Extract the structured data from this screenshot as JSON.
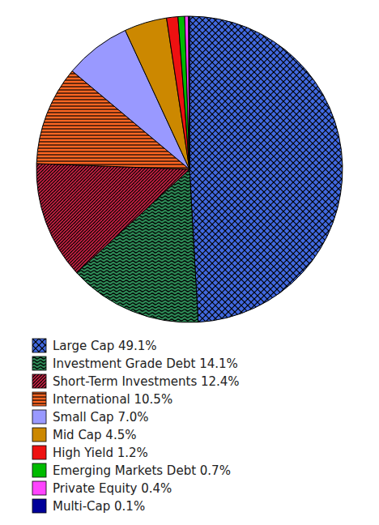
{
  "chart_data": {
    "type": "pie",
    "categories": [
      "Large Cap 49.1%",
      "Investment Grade Debt 14.1%",
      "Short-Term Investments 12.4%",
      "International 10.5%",
      "Small Cap 7.0%",
      "Mid Cap 4.5%",
      "High Yield 1.2%",
      "Emerging Markets Debt 0.7%",
      "Private Equity 0.4%",
      "Multi-Cap 0.1%"
    ],
    "values": [
      49.1,
      14.1,
      12.4,
      10.5,
      7.0,
      4.5,
      1.2,
      0.7,
      0.4,
      0.1
    ],
    "colors": [
      "#4169E1",
      "#2E8B57",
      "#CC2244",
      "#FF6622",
      "#9999FF",
      "#CC8800",
      "#EE1111",
      "#00BB00",
      "#FF44FF",
      "#000099"
    ],
    "legend": "bottom"
  }
}
